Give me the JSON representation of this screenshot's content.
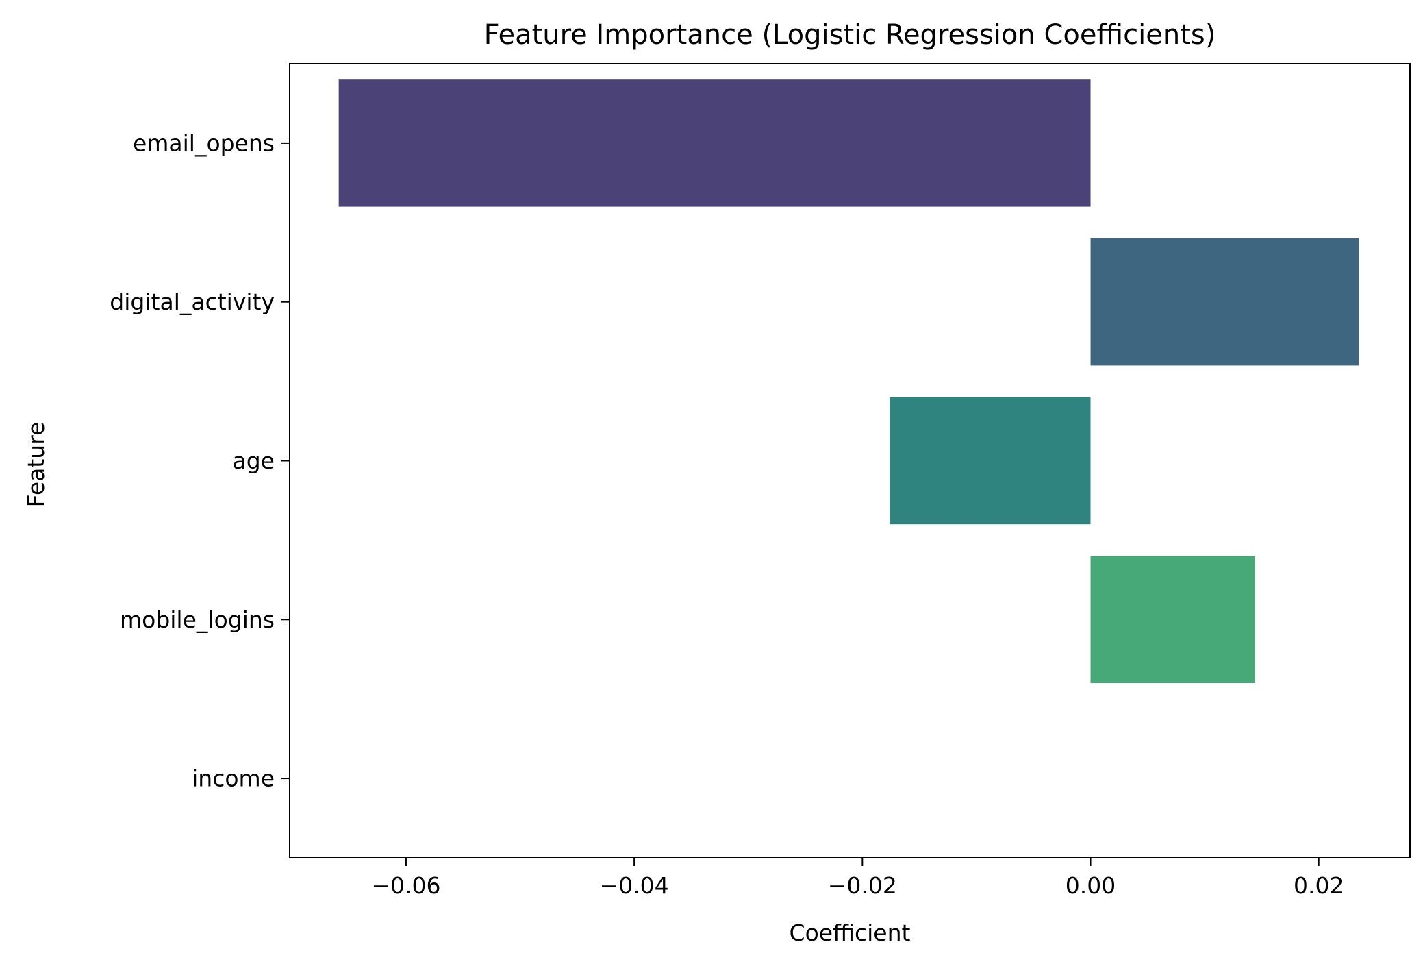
{
  "chart_data": {
    "type": "bar",
    "orientation": "horizontal",
    "title": "Feature Importance (Logistic Regression Coefficients)",
    "xlabel": "Coefficient",
    "ylabel": "Feature",
    "categories": [
      "email_opens",
      "digital_activity",
      "age",
      "mobile_logins",
      "income"
    ],
    "values": [
      -0.0659,
      0.0235,
      -0.0176,
      0.0144,
      0.0
    ],
    "colors": [
      "#4b4378",
      "#3f6680",
      "#2f8480",
      "#47a878",
      "#7bc66a"
    ],
    "xlim": [
      -0.0702,
      0.028
    ],
    "xticks": [
      -0.06,
      -0.04,
      -0.02,
      0.0,
      0.02
    ],
    "xtick_labels": [
      "−0.06",
      "−0.04",
      "−0.02",
      "0.00",
      "0.02"
    ],
    "grid": false,
    "legend": "none"
  }
}
